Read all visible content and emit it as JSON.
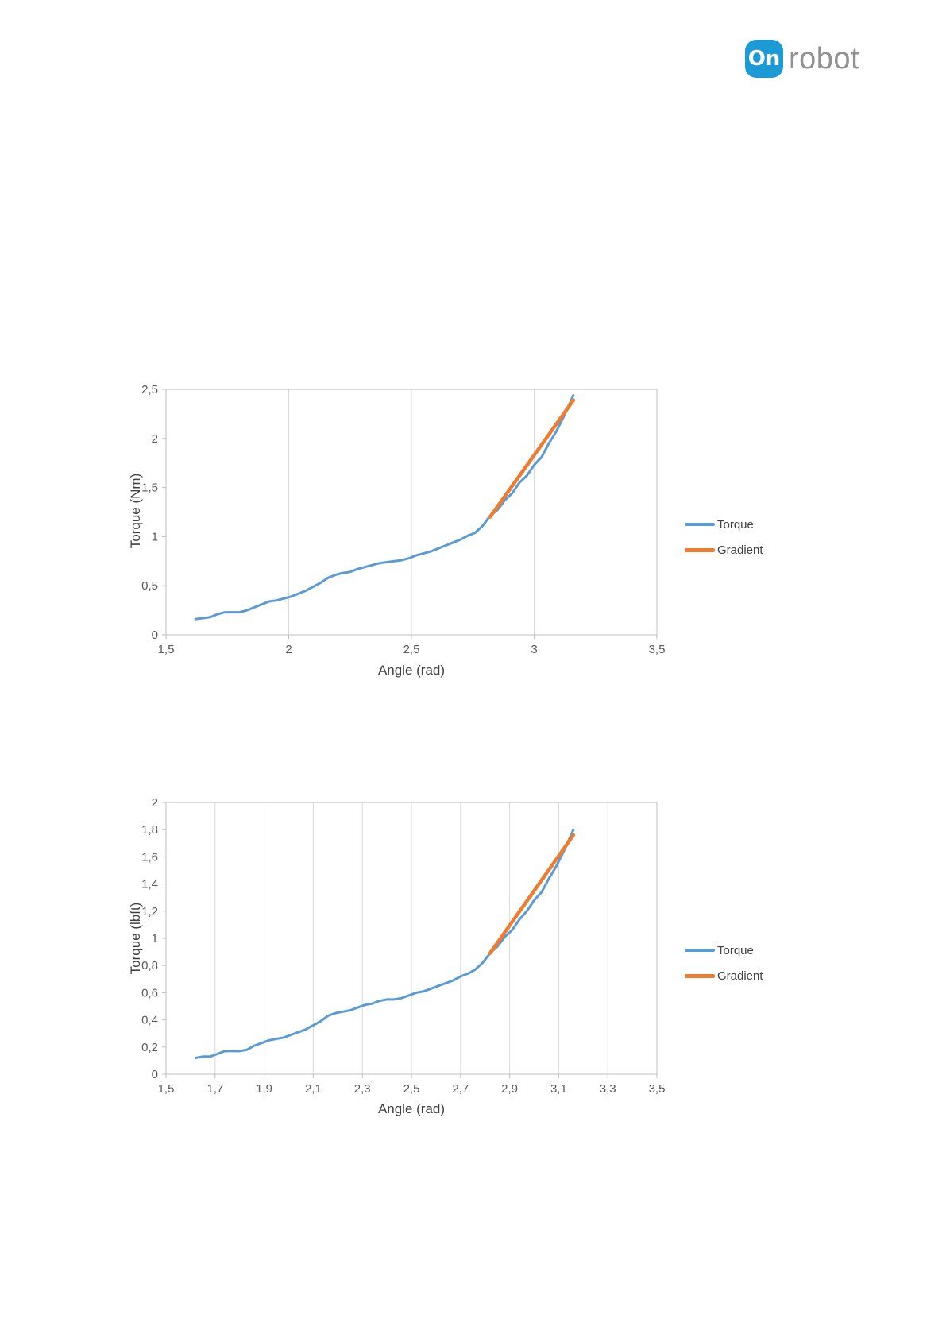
{
  "logo": {
    "badge_text": "On",
    "brand_text": "robot",
    "badge_color": "#1b9ad6",
    "brand_color": "#8f9194"
  },
  "colors": {
    "torque_line": "#5B9BD5",
    "gradient_line": "#ED7D31",
    "gridline": "#D9D9D9",
    "axis_line": "#BFBFBF",
    "tick_text": "#595959",
    "axis_title_text": "#404040"
  },
  "chart_data": [
    {
      "type": "line",
      "title": "",
      "xlabel": "Angle (rad)",
      "ylabel": "Torque (Nm)",
      "xlim": [
        1.5,
        3.5
      ],
      "ylim": [
        0,
        2.5
      ],
      "grid": "vertical",
      "legend_position": "right",
      "x_tick_values": [
        1.5,
        2,
        2.5,
        3,
        3.5
      ],
      "x_tick_labels": [
        "1,5",
        "2",
        "2,5",
        "3",
        "3,5"
      ],
      "y_tick_values": [
        0,
        0.5,
        1,
        1.5,
        2,
        2.5
      ],
      "y_tick_labels": [
        "0",
        "0,5",
        "1",
        "1,5",
        "2",
        "2,5"
      ],
      "series": [
        {
          "name": "Torque",
          "color": "#5B9BD5",
          "width": 3,
          "x": [
            1.62,
            1.65,
            1.68,
            1.71,
            1.74,
            1.77,
            1.8,
            1.83,
            1.86,
            1.89,
            1.92,
            1.95,
            1.98,
            2.01,
            2.04,
            2.07,
            2.1,
            2.13,
            2.16,
            2.19,
            2.22,
            2.25,
            2.28,
            2.31,
            2.34,
            2.37,
            2.4,
            2.43,
            2.46,
            2.49,
            2.52,
            2.55,
            2.58,
            2.61,
            2.64,
            2.67,
            2.7,
            2.73,
            2.76,
            2.79,
            2.82,
            2.85,
            2.88,
            2.91,
            2.94,
            2.97,
            3.0,
            3.03,
            3.06,
            3.09,
            3.12,
            3.16
          ],
          "y": [
            0.16,
            0.17,
            0.18,
            0.21,
            0.23,
            0.23,
            0.23,
            0.25,
            0.28,
            0.31,
            0.34,
            0.35,
            0.37,
            0.39,
            0.42,
            0.45,
            0.49,
            0.53,
            0.58,
            0.61,
            0.63,
            0.64,
            0.67,
            0.69,
            0.71,
            0.73,
            0.74,
            0.75,
            0.76,
            0.78,
            0.81,
            0.83,
            0.85,
            0.88,
            0.91,
            0.94,
            0.97,
            1.01,
            1.04,
            1.11,
            1.21,
            1.27,
            1.37,
            1.44,
            1.55,
            1.62,
            1.73,
            1.81,
            1.95,
            2.07,
            2.22,
            2.44
          ]
        },
        {
          "name": "Gradient",
          "color": "#ED7D31",
          "width": 4.5,
          "x": [
            2.82,
            3.16
          ],
          "y": [
            1.2,
            2.39
          ]
        }
      ]
    },
    {
      "type": "line",
      "title": "",
      "xlabel": "Angle (rad)",
      "ylabel": "Torque (lbft)",
      "xlim": [
        1.5,
        3.5
      ],
      "ylim": [
        0,
        2
      ],
      "grid": "vertical",
      "legend_position": "right",
      "x_tick_values": [
        1.5,
        1.7,
        1.9,
        2.1,
        2.3,
        2.5,
        2.7,
        2.9,
        3.1,
        3.3,
        3.5
      ],
      "x_tick_labels": [
        "1,5",
        "1,7",
        "1,9",
        "2,1",
        "2,3",
        "2,5",
        "2,7",
        "2,9",
        "3,1",
        "3,3",
        "3,5"
      ],
      "y_tick_values": [
        0,
        0.2,
        0.4,
        0.6,
        0.8,
        1,
        1.2,
        1.4,
        1.6,
        1.8,
        2
      ],
      "y_tick_labels": [
        "0",
        "0,2",
        "0,4",
        "0,6",
        "0,8",
        "1",
        "1,2",
        "1,4",
        "1,6",
        "1,8",
        "2"
      ],
      "series": [
        {
          "name": "Torque",
          "color": "#5B9BD5",
          "width": 3,
          "x": [
            1.62,
            1.65,
            1.68,
            1.71,
            1.74,
            1.77,
            1.8,
            1.83,
            1.86,
            1.89,
            1.92,
            1.95,
            1.98,
            2.01,
            2.04,
            2.07,
            2.1,
            2.13,
            2.16,
            2.19,
            2.22,
            2.25,
            2.28,
            2.31,
            2.34,
            2.37,
            2.4,
            2.43,
            2.46,
            2.49,
            2.52,
            2.55,
            2.58,
            2.61,
            2.64,
            2.67,
            2.7,
            2.73,
            2.76,
            2.79,
            2.82,
            2.85,
            2.88,
            2.91,
            2.94,
            2.97,
            3.0,
            3.03,
            3.06,
            3.09,
            3.12,
            3.16
          ],
          "y": [
            0.12,
            0.13,
            0.13,
            0.15,
            0.17,
            0.17,
            0.17,
            0.18,
            0.21,
            0.23,
            0.25,
            0.26,
            0.27,
            0.29,
            0.31,
            0.33,
            0.36,
            0.39,
            0.43,
            0.45,
            0.46,
            0.47,
            0.49,
            0.51,
            0.52,
            0.54,
            0.55,
            0.55,
            0.56,
            0.58,
            0.6,
            0.61,
            0.63,
            0.65,
            0.67,
            0.69,
            0.72,
            0.74,
            0.77,
            0.82,
            0.89,
            0.94,
            1.01,
            1.06,
            1.14,
            1.2,
            1.28,
            1.34,
            1.44,
            1.53,
            1.64,
            1.8
          ]
        },
        {
          "name": "Gradient",
          "color": "#ED7D31",
          "width": 4.5,
          "x": [
            2.82,
            3.16
          ],
          "y": [
            0.89,
            1.76
          ]
        }
      ]
    }
  ]
}
